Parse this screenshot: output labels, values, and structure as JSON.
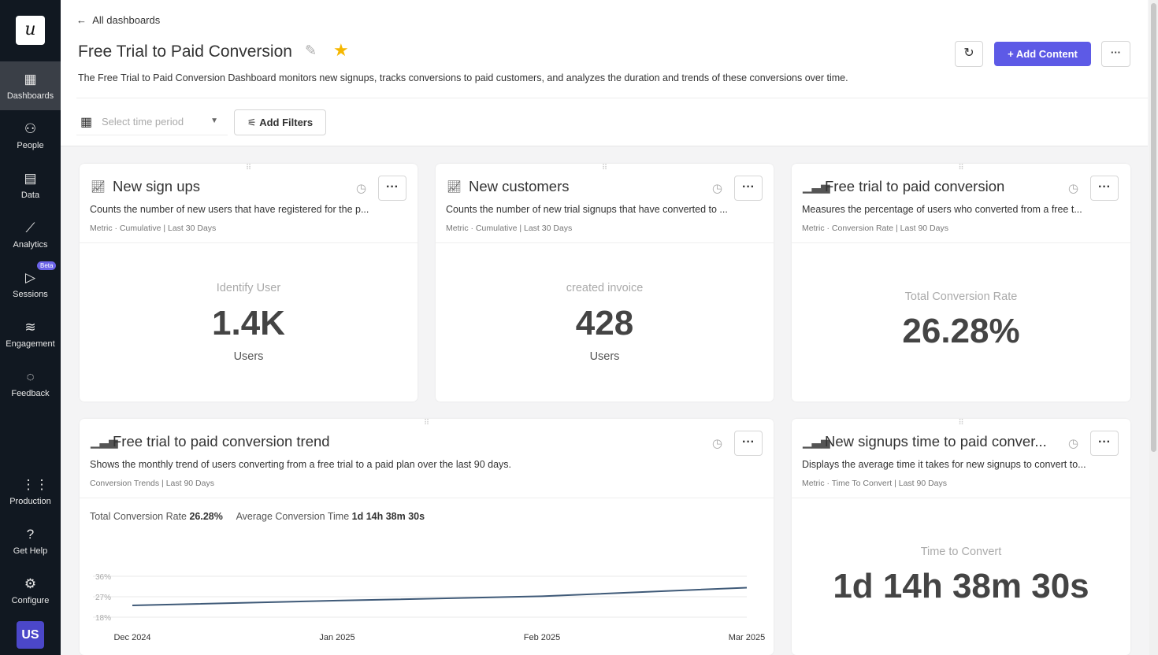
{
  "sidebar": {
    "logo": "u",
    "items": [
      {
        "label": "Dashboards",
        "icon": "dashboard-icon"
      },
      {
        "label": "People",
        "icon": "people-icon"
      },
      {
        "label": "Data",
        "icon": "data-icon"
      },
      {
        "label": "Analytics",
        "icon": "analytics-icon"
      },
      {
        "label": "Sessions",
        "icon": "play-icon",
        "badge": "Beta"
      },
      {
        "label": "Engagement",
        "icon": "layers-icon"
      },
      {
        "label": "Feedback",
        "icon": "chat-icon"
      }
    ],
    "bottom": [
      {
        "label": "Production",
        "icon": "grid-icon"
      },
      {
        "label": "Get Help",
        "icon": "help-icon"
      },
      {
        "label": "Configure",
        "icon": "gear-icon"
      }
    ],
    "avatar": "US"
  },
  "header": {
    "back": "All dashboards",
    "title": "Free Trial to Paid Conversion",
    "description": "The Free Trial to Paid Conversion Dashboard monitors new signups, tracks conversions to paid customers, and analyzes the duration and trends of these conversions over time.",
    "add_content": "Add Content",
    "time_placeholder": "Select time period",
    "add_filters": "Add Filters"
  },
  "cards": [
    {
      "title": "New sign ups",
      "description": "Counts the number of new users that have registered for the p...",
      "meta": "Metric · Cumulative | Last 30 Days",
      "label": "Identify User",
      "value": "1.4K",
      "unit": "Users"
    },
    {
      "title": "New customers",
      "description": "Counts the number of new trial signups that have converted to ...",
      "meta": "Metric · Cumulative | Last 30 Days",
      "label": "created invoice",
      "value": "428",
      "unit": "Users"
    },
    {
      "title": "Free trial to paid conversion",
      "description": "Measures the percentage of users who converted from a free t...",
      "meta": "Metric · Conversion Rate | Last 90 Days",
      "label": "Total Conversion Rate",
      "value": "26.28%"
    },
    {
      "title": "Free trial to paid conversion trend",
      "description": "Shows the monthly trend of users converting from a free trial to a paid plan over the last 90 days.",
      "meta": "Conversion Trends | Last 90 Days",
      "summary": {
        "rate_label": "Total Conversion Rate",
        "rate": "26.28%",
        "time_label": "Average Conversion Time",
        "time": "1d 14h 38m 30s"
      }
    },
    {
      "title": "New signups time to paid conver...",
      "description": "Displays the average time it takes for new signups to convert to...",
      "meta": "Metric · Time To Convert | Last 90 Days",
      "label": "Time to Convert",
      "value": "1d 14h 38m 30s"
    }
  ],
  "chart_data": {
    "type": "line",
    "x": [
      "Dec 2024",
      "Jan 2025",
      "Feb 2025",
      "Mar 2025"
    ],
    "values": [
      23.2,
      25.3,
      27.2,
      31
    ],
    "yticks": [
      "36%",
      "27%",
      "18%"
    ],
    "ylim": [
      18,
      36
    ],
    "grid": true,
    "color": "#3f5a78"
  }
}
